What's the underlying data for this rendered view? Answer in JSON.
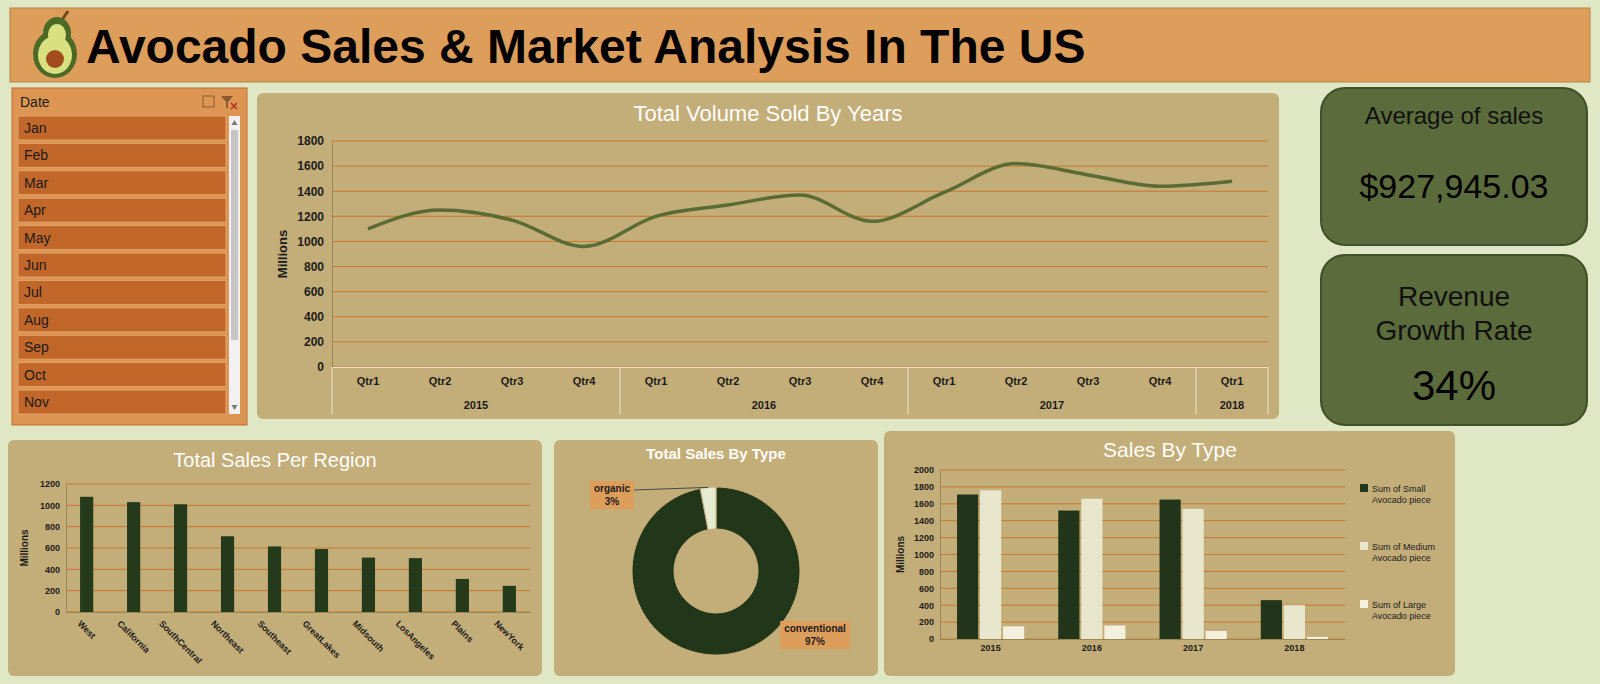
{
  "header": {
    "title": "Avocado Sales & Market Analysis In The US"
  },
  "slicer": {
    "title": "Date",
    "items": [
      "Jan",
      "Feb",
      "Mar",
      "Apr",
      "May",
      "Jun",
      "Jul",
      "Aug",
      "Sep",
      "Oct",
      "Nov"
    ]
  },
  "kpis": [
    {
      "title": "Average of sales",
      "value": "$927,945.03"
    },
    {
      "title": "Revenue Growth Rate",
      "value": "34%"
    }
  ],
  "chart_data": [
    {
      "type": "line",
      "title": "Total Volume Sold By Years",
      "y_label": "Millions",
      "categories": [
        "Qtr1",
        "Qtr2",
        "Qtr3",
        "Qtr4",
        "Qtr1",
        "Qtr2",
        "Qtr3",
        "Qtr4",
        "Qtr1",
        "Qtr2",
        "Qtr3",
        "Qtr4",
        "Qtr1"
      ],
      "groups": [
        "2015",
        "2015",
        "2015",
        "2015",
        "2016",
        "2016",
        "2016",
        "2016",
        "2017",
        "2017",
        "2017",
        "2017",
        "2018"
      ],
      "values": [
        1100,
        1250,
        1170,
        960,
        1200,
        1290,
        1370,
        1160,
        1390,
        1620,
        1530,
        1440,
        1480
      ],
      "color": "#5a6b34",
      "line_style": "smooth",
      "ylim": [
        0,
        1800
      ],
      "yticks": [
        0,
        200,
        400,
        600,
        800,
        1000,
        1200,
        1400,
        1600,
        1800
      ],
      "grid": true
    },
    {
      "type": "bar",
      "title": "Total Sales Per Region",
      "y_label": "Millions",
      "categories": [
        "West",
        "California",
        "SouthCentral",
        "Northeast",
        "Southeast",
        "GreatLakes",
        "Midsouth",
        "LosAngeles",
        "Plains",
        "NewYork"
      ],
      "values": [
        1080,
        1030,
        1010,
        710,
        615,
        590,
        510,
        505,
        310,
        245
      ],
      "color": "#243a1a",
      "ylim": [
        0,
        1200
      ],
      "yticks": [
        0,
        200,
        400,
        600,
        800,
        1000,
        1200
      ],
      "grid": true
    },
    {
      "type": "donut",
      "title": "Total Sales By Type",
      "categories": [
        "conventional",
        "organic"
      ],
      "values": [
        97,
        3
      ],
      "value_labels": [
        "97%",
        "3%"
      ],
      "colors": [
        "#22361a",
        "#e6ecd2"
      ],
      "data_labels": true
    },
    {
      "type": "bar",
      "title": "Sales By Type",
      "y_label": "Millions",
      "categories": [
        "2015",
        "2016",
        "2017",
        "2018"
      ],
      "series": [
        {
          "name": "Sum of Small Avocado piece",
          "color": "#22351a",
          "values": [
            1710,
            1520,
            1650,
            460
          ]
        },
        {
          "name": "Sum of Medium Avocado piece",
          "color": "#e8e7cd",
          "values": [
            1760,
            1660,
            1540,
            400
          ]
        },
        {
          "name": "Sum of Large Avocado piece",
          "color": "#f3f0de",
          "values": [
            150,
            160,
            95,
            25
          ]
        }
      ],
      "ylim": [
        0,
        2000
      ],
      "yticks": [
        0,
        200,
        400,
        600,
        800,
        1000,
        1200,
        1400,
        1600,
        1800,
        2000
      ],
      "grid": true,
      "legend": "right"
    }
  ]
}
